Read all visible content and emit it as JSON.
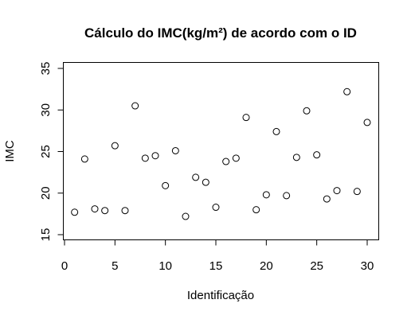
{
  "chart_data": {
    "type": "scatter",
    "title": "Cálculo do IMC(kg/m²) de acordo com o ID",
    "xlabel": "Identificação",
    "ylabel": "IMC",
    "xlim": [
      0,
      30
    ],
    "ylim": [
      15,
      35
    ],
    "xticks": [
      "0",
      "5",
      "10",
      "15",
      "20",
      "25",
      "30"
    ],
    "yticks": [
      "15",
      "20",
      "25",
      "30",
      "35"
    ],
    "grid": false,
    "marker": "open-circle",
    "x": [
      1,
      2,
      3,
      4,
      5,
      6,
      7,
      8,
      9,
      10,
      11,
      12,
      13,
      14,
      15,
      16,
      17,
      18,
      19,
      20,
      21,
      22,
      23,
      24,
      25,
      26,
      27,
      28,
      29,
      30
    ],
    "y": [
      17.7,
      24.1,
      18.1,
      17.9,
      25.7,
      17.9,
      30.5,
      24.2,
      24.5,
      20.9,
      25.1,
      17.2,
      21.9,
      21.3,
      18.3,
      23.8,
      24.2,
      29.1,
      18.0,
      19.8,
      27.4,
      19.7,
      24.3,
      29.9,
      24.6,
      19.3,
      20.3,
      32.2,
      20.2,
      28.5
    ]
  }
}
